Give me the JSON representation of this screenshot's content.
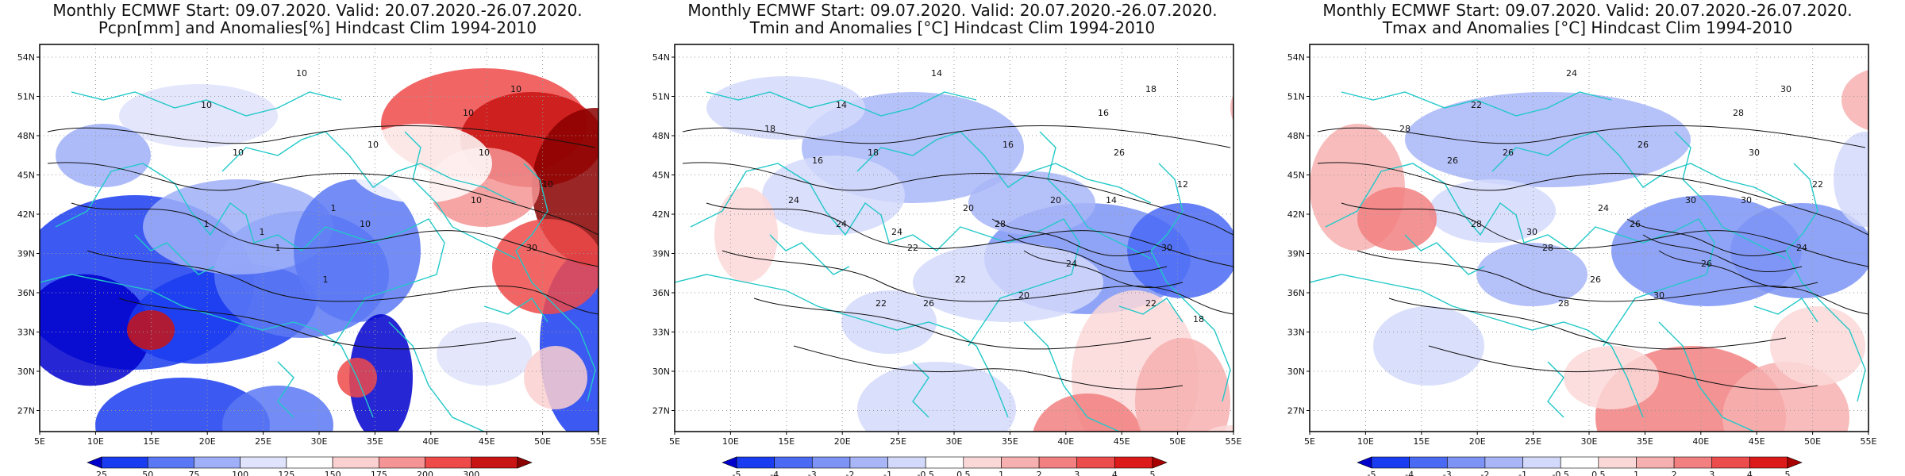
{
  "panels": [
    {
      "title1": "Monthly ECMWF Start: 09.07.2020. Valid: 20.07.2020.-26.07.2020.",
      "title2": "Pcpn[mm] and Anomalies[%] Hindcast Clim 1994-2010",
      "colorbar_labels": [
        "25",
        "50",
        "75",
        "100",
        "125",
        "150",
        "175",
        "200",
        "300"
      ],
      "colorbar_colors": [
        "#0000cc",
        "#1a3cf0",
        "#5a78f5",
        "#9fb0f8",
        "#dfe3fb",
        "#ffffff",
        "#fbd0d0",
        "#f59494",
        "#ee4a4a",
        "#c91414",
        "#8a0000"
      ],
      "contour_labels": [
        "10",
        "10",
        "10",
        "10",
        "10",
        "10",
        "1",
        "1",
        "1",
        "1",
        "1",
        "10",
        "10",
        "30",
        "10",
        "10"
      ]
    },
    {
      "title1": "Monthly ECMWF Start: 09.07.2020. Valid: 20.07.2020.-26.07.2020.",
      "title2": "Tmin and Anomalies [°C] Hindcast Clim 1994-2010",
      "colorbar_labels": [
        "-5",
        "-4",
        "-3",
        "-2",
        "-1",
        "-0.5",
        "0.5",
        "1",
        "2",
        "3",
        "4",
        "5"
      ],
      "colorbar_colors": [
        "#0000cc",
        "#1a3cf0",
        "#4a6af4",
        "#7d94f6",
        "#a8b6f8",
        "#d3d9fb",
        "#ffffff",
        "#fbd8d8",
        "#f7b0b0",
        "#f28080",
        "#ec4c4c",
        "#dd1a1a",
        "#a80000"
      ],
      "contour_labels": [
        "14",
        "14",
        "16",
        "16",
        "18",
        "18",
        "20",
        "22",
        "24",
        "22",
        "24",
        "26",
        "28",
        "30",
        "12",
        "14",
        "16",
        "18",
        "20",
        "24",
        "26",
        "20",
        "22",
        "18",
        "24",
        "22"
      ]
    },
    {
      "title1": "Monthly ECMWF Start: 09.07.2020. Valid: 20.07.2020.-26.07.2020.",
      "title2": "Tmax and Anomalies [°C] Hindcast Clim 1994-2010",
      "colorbar_labels": [
        "-5",
        "-4",
        "-3",
        "-2",
        "-1",
        "-0.5",
        "0.5",
        "1",
        "2",
        "3",
        "4",
        "5"
      ],
      "colorbar_colors": [
        "#0000cc",
        "#1a3cf0",
        "#4a6af4",
        "#7d94f6",
        "#a8b6f8",
        "#d3d9fb",
        "#ffffff",
        "#fbd8d8",
        "#f7b0b0",
        "#f28080",
        "#ec4c4c",
        "#dd1a1a",
        "#a80000"
      ],
      "contour_labels": [
        "22",
        "24",
        "26",
        "28",
        "30",
        "26",
        "24",
        "28",
        "30",
        "26",
        "28",
        "30",
        "26",
        "24",
        "22",
        "30",
        "26",
        "28",
        "30",
        "26",
        "28",
        "30"
      ]
    }
  ],
  "map_axes": {
    "lat_labels": [
      "54N",
      "51N",
      "48N",
      "45N",
      "42N",
      "39N",
      "36N",
      "33N",
      "30N",
      "27N"
    ],
    "lon_labels": [
      "5E",
      "10E",
      "15E",
      "20E",
      "25E",
      "30E",
      "35E",
      "40E",
      "45E",
      "50E",
      "55E"
    ]
  },
  "colors": {
    "coastline": "#22c8c8",
    "contour": "#111111",
    "frame": "#000000",
    "grid": "#999999"
  }
}
